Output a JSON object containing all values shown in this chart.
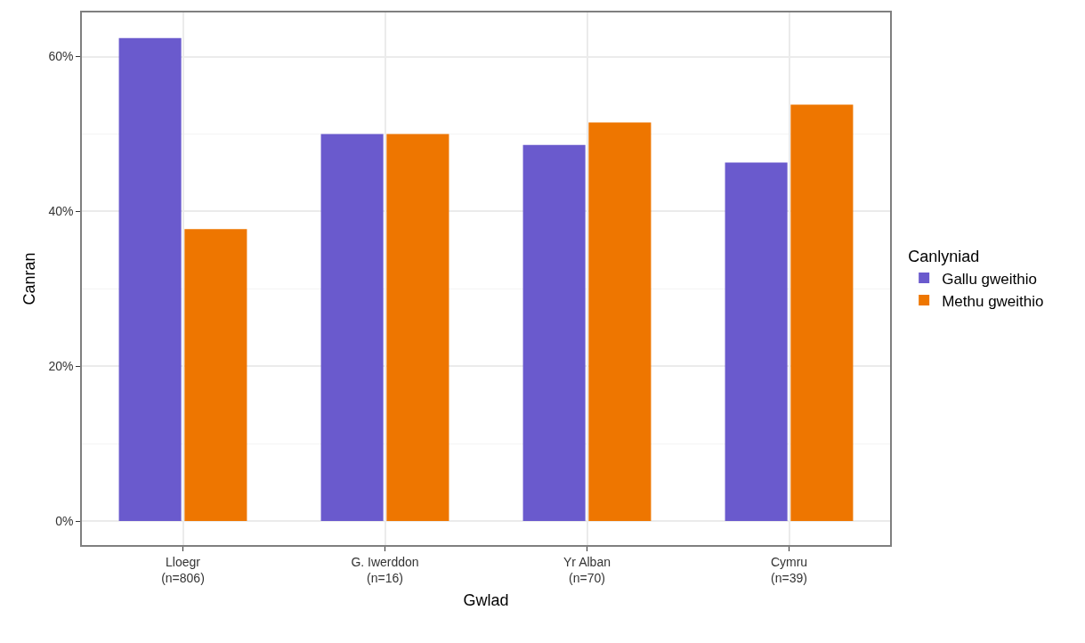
{
  "chart_data": {
    "type": "bar",
    "xlabel": "Gwlad",
    "ylabel": "Canran",
    "legend_title": "Canlyniad",
    "categories": [
      "Lloegr\n(n=806)",
      "G. Iwerddon\n(n=16)",
      "Yr Alban\n(n=70)",
      "Cymru\n(n=39)"
    ],
    "series": [
      {
        "name": "Gallu gweithio",
        "color": "#6a5acd",
        "values": [
          62.4,
          50,
          48.6,
          46.3
        ]
      },
      {
        "name": "Methu gweithio",
        "color": "#ee7600",
        "values": [
          37.7,
          50,
          51.5,
          53.8
        ]
      }
    ],
    "ylim": [
      -3.1,
      65.7
    ],
    "yticks": [
      {
        "value": 0,
        "label": "0%"
      },
      {
        "value": 20,
        "label": "20%"
      },
      {
        "value": 40,
        "label": "40%"
      },
      {
        "value": 60,
        "label": "60%"
      }
    ],
    "grid": true,
    "legend": "right"
  }
}
